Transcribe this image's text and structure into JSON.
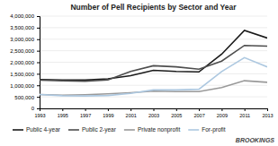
{
  "chart_data": {
    "type": "line",
    "title": "Number of Pell Recipients by Sector and Year",
    "x": [
      1993,
      1995,
      1997,
      1999,
      2001,
      2003,
      2005,
      2007,
      2009,
      2011,
      2013
    ],
    "series": [
      {
        "name": "Public 4-year",
        "color": "#1a1a1a",
        "values": [
          1250000,
          1230000,
          1230000,
          1280000,
          1420000,
          1650000,
          1600000,
          1580000,
          2350000,
          3380000,
          3050000
        ]
      },
      {
        "name": "Public 2-year",
        "color": "#4d4d4d",
        "values": [
          1230000,
          1200000,
          1180000,
          1230000,
          1600000,
          1850000,
          1800000,
          1700000,
          2050000,
          2730000,
          2700000
        ]
      },
      {
        "name": "Private nonprofit",
        "color": "#999999",
        "values": [
          600000,
          570000,
          590000,
          630000,
          680000,
          750000,
          730000,
          730000,
          900000,
          1200000,
          1130000
        ]
      },
      {
        "name": "For-profit",
        "color": "#adc8e0",
        "values": [
          600000,
          550000,
          540000,
          560000,
          650000,
          800000,
          800000,
          830000,
          1600000,
          2200000,
          1800000
        ]
      }
    ],
    "xlim": [
      1993,
      2013
    ],
    "xticks": [
      1993,
      1995,
      1997,
      1999,
      2001,
      2003,
      2005,
      2007,
      2009,
      2011,
      2013
    ],
    "ylim": [
      0,
      4000000
    ],
    "yticks": [
      0,
      {
        "value": 500000,
        "label": "500,000"
      },
      {
        "value": 1000000,
        "label": "1,000,000"
      },
      {
        "value": 1500000,
        "label": "1,500,000"
      },
      {
        "value": 2000000,
        "label": "2,000,000"
      },
      {
        "value": 2500000,
        "label": "2,500,000"
      },
      {
        "value": 3000000,
        "label": "3,000,000"
      },
      {
        "value": 3500000,
        "label": "3,500,000"
      },
      {
        "value": 4000000,
        "label": "4,000,000"
      }
    ],
    "grid": true,
    "legend": "bottom",
    "annotations": [
      "BROOKINGS"
    ]
  }
}
